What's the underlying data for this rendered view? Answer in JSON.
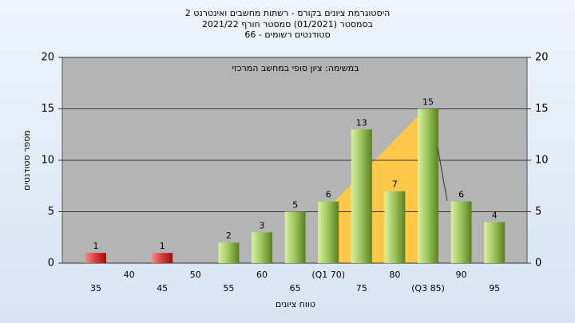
{
  "chart_data": {
    "type": "bar",
    "title": "היסטוגרמת ציונים בקורס - רשתות מחשבים ואינטרנט 2",
    "subtitle": "בסמסטר  (01/2021)  סמסטר חורף 2021/22",
    "subtitle2": "סטודנטים רשומים - 66",
    "annotation": "במשימה: ציון סופי במחשב המרכזי",
    "x_label": "טווח ציונים",
    "y_label": "מספר סטודנטים",
    "categories": [
      "35",
      "40",
      "45",
      "50",
      "55",
      "60",
      "65",
      "(Q1 70)",
      "75",
      "80",
      "(Q3 85)",
      "90",
      "95"
    ],
    "values": [
      1,
      null,
      1,
      null,
      2,
      3,
      5,
      6,
      13,
      7,
      15,
      6,
      4
    ],
    "colors": [
      "red",
      null,
      "red",
      null,
      "green",
      "green",
      "green",
      "green",
      "green",
      "green",
      "green",
      "green",
      "green"
    ],
    "ylim": [
      0,
      20
    ],
    "yticks": [
      0,
      5,
      10,
      15,
      20
    ],
    "y2lim": [
      0,
      20
    ],
    "y2ticks": [
      0,
      5,
      10,
      15,
      20
    ],
    "grid": true
  }
}
